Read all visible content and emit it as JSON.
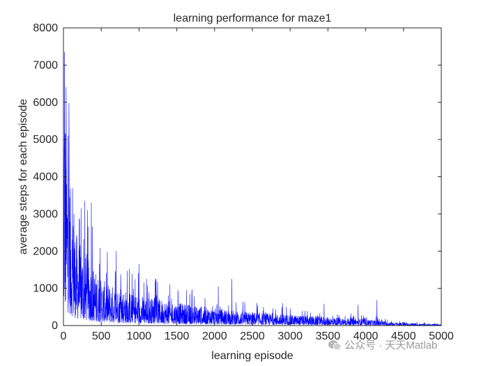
{
  "chart_data": {
    "type": "line",
    "title": "learning performance for maze1",
    "xlabel": "learning episode",
    "ylabel": "average steps for each episode",
    "xlim": [
      0,
      5000
    ],
    "ylim": [
      0,
      8000
    ],
    "xticks": [
      0,
      500,
      1000,
      1500,
      2000,
      2500,
      3000,
      3500,
      4000,
      4500,
      5000
    ],
    "yticks": [
      0,
      1000,
      2000,
      3000,
      4000,
      5000,
      6000,
      7000,
      8000
    ],
    "xtick_labels": [
      "0",
      "500",
      "1000",
      "1500",
      "2000",
      "2500",
      "3000",
      "3500",
      "4000",
      "4500",
      "5000"
    ],
    "ytick_labels": [
      "0",
      "1000",
      "2000",
      "3000",
      "4000",
      "5000",
      "6000",
      "7000",
      "8000"
    ],
    "grid": false,
    "line_color": "#0000ff",
    "envelope": {
      "x": [
        0,
        10,
        20,
        40,
        60,
        100,
        150,
        200,
        300,
        400,
        500,
        700,
        1000,
        1500,
        2000,
        2500,
        3000,
        3500,
        4000,
        4200,
        4500,
        5000
      ],
      "y": [
        2000,
        7400,
        6000,
        5000,
        4500,
        3400,
        2600,
        2200,
        1800,
        1500,
        1200,
        1000,
        800,
        600,
        450,
        350,
        280,
        220,
        170,
        120,
        60,
        30
      ]
    },
    "spikes": {
      "x": [
        15,
        35,
        60,
        75,
        140,
        320,
        370,
        700,
        1000,
        1100,
        1220,
        1410,
        1700,
        2050,
        2230,
        2900,
        3450,
        3900,
        4150
      ],
      "y": [
        7350,
        6400,
        5100,
        4900,
        3000,
        3100,
        3300,
        2000,
        1650,
        1250,
        1250,
        1100,
        900,
        1050,
        1250,
        600,
        580,
        550,
        680
      ]
    }
  },
  "watermark": {
    "icon": "wechat-icon",
    "text": "公众号 · 天天Matlab"
  }
}
